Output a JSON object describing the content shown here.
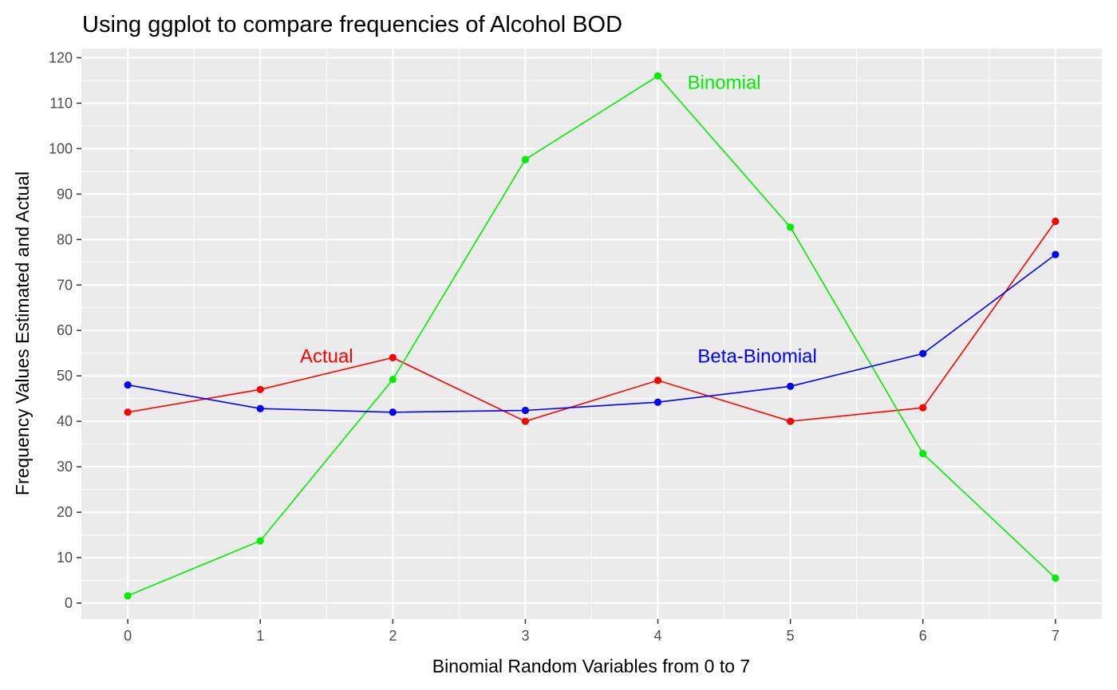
{
  "chart_data": {
    "type": "line",
    "title": "Using ggplot to compare frequencies of Alcohol BOD",
    "xlabel": "Binomial Random Variables from 0 to 7",
    "ylabel": "Frequency Values Estimated and Actual",
    "x": [
      0,
      1,
      2,
      3,
      4,
      5,
      6,
      7
    ],
    "xlim": [
      -0.35,
      7.35
    ],
    "ylim": [
      -3.5,
      122
    ],
    "xticks": [
      0,
      1,
      2,
      3,
      4,
      5,
      6,
      7
    ],
    "yticks": [
      0,
      10,
      20,
      30,
      40,
      50,
      60,
      70,
      80,
      90,
      100,
      110,
      120
    ],
    "grid": true,
    "legend": "none",
    "series": [
      {
        "name": "Actual",
        "color": "#ff0000",
        "values": [
          42,
          47,
          54,
          40,
          49,
          40,
          43,
          84
        ],
        "label_x": 1.5,
        "label_y": 54.3
      },
      {
        "name": "Binomial",
        "color": "#00ee00",
        "values": [
          1.6,
          13.7,
          49.2,
          97.6,
          116,
          82.7,
          32.9,
          5.5
        ],
        "label_x": 4.5,
        "label_y": 114.5
      },
      {
        "name": "Beta-Binomial",
        "color": "#0000ff",
        "values": [
          48,
          42.8,
          42,
          42.4,
          44.2,
          47.7,
          54.9,
          76.7
        ],
        "label_x": 4.75,
        "label_y": 54.3
      }
    ]
  }
}
